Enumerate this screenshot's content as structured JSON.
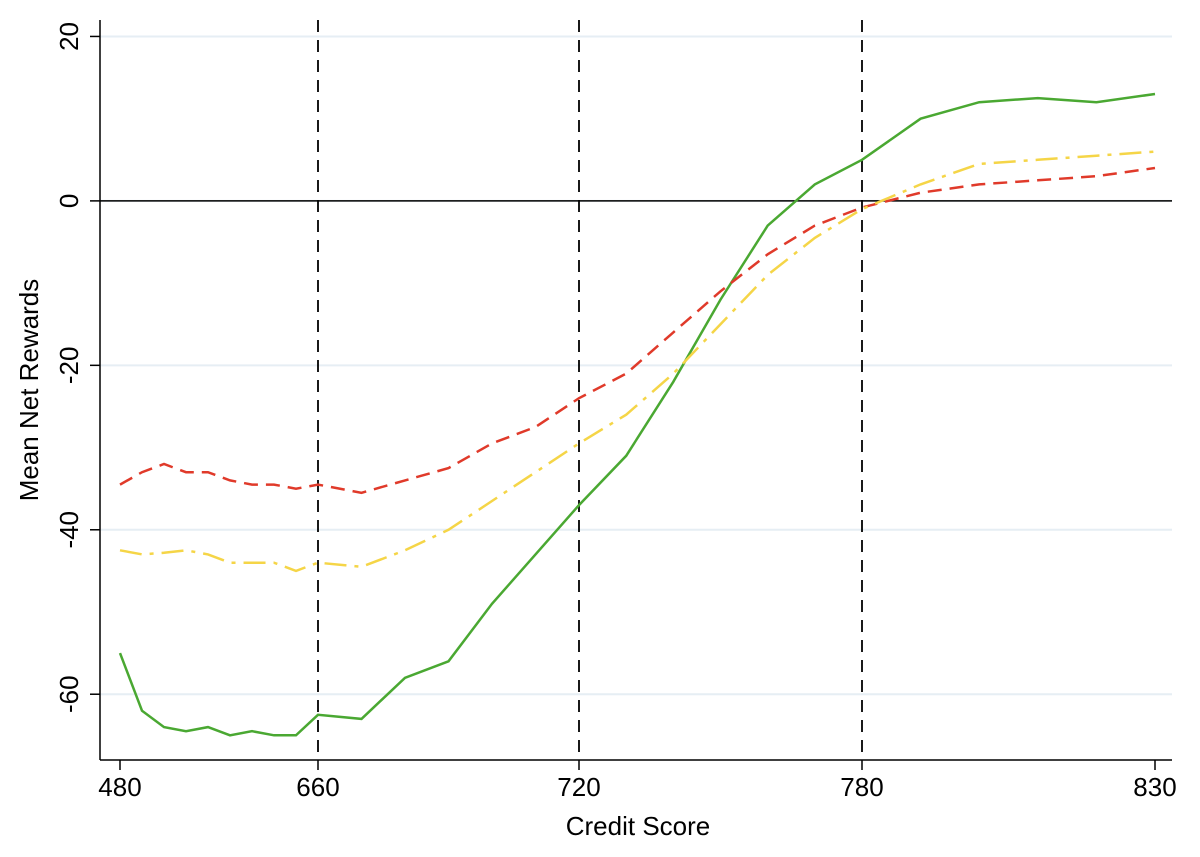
{
  "chart_data": {
    "type": "line",
    "x_label": "Credit Score",
    "y_label": "Mean Net Rewards",
    "x": [
      480,
      500,
      520,
      540,
      560,
      580,
      600,
      620,
      640,
      660,
      670,
      680,
      690,
      700,
      710,
      720,
      730,
      740,
      750,
      760,
      770,
      780,
      790,
      800,
      810,
      820,
      830
    ],
    "series": [
      {
        "color": "#4aa832",
        "style": "solid",
        "values": [
          -55,
          -62,
          -64,
          -64.5,
          -64,
          -65,
          -64.5,
          -65,
          -65,
          -62.5,
          -63,
          -58,
          -56,
          -49,
          -43,
          -37,
          -31,
          -22,
          -12,
          -3,
          2,
          5,
          10,
          12,
          12.5,
          12,
          13
        ]
      },
      {
        "color": "#e03a2a",
        "style": "dashed",
        "values": [
          -34.5,
          -33,
          -32,
          -33,
          -33,
          -34,
          -34.5,
          -34.5,
          -35,
          -34.5,
          -35.5,
          -34,
          -32.5,
          -29.5,
          -27.5,
          -24,
          -21,
          -16,
          -11,
          -6.5,
          -3,
          -0.8,
          1,
          2,
          2.5,
          3,
          4
        ]
      },
      {
        "color": "#f5d547",
        "style": "dashdot",
        "values": [
          -42.5,
          -43,
          -42.8,
          -42.5,
          -43,
          -44,
          -44,
          -44,
          -45,
          -44,
          -44.5,
          -42.5,
          -40,
          -36.5,
          -33,
          -29.5,
          -26,
          -21,
          -15,
          -9,
          -4.5,
          -1,
          2,
          4.5,
          5,
          5.5,
          6
        ]
      }
    ],
    "xlim": [
      462,
      833
    ],
    "xticks": [
      480,
      660,
      720,
      780,
      830
    ],
    "ylim": [
      -68,
      22
    ],
    "yticks": [
      -60,
      -40,
      -20,
      0,
      20
    ],
    "grid": true,
    "zero_line": 0,
    "vlines": [
      660,
      720,
      780
    ]
  }
}
